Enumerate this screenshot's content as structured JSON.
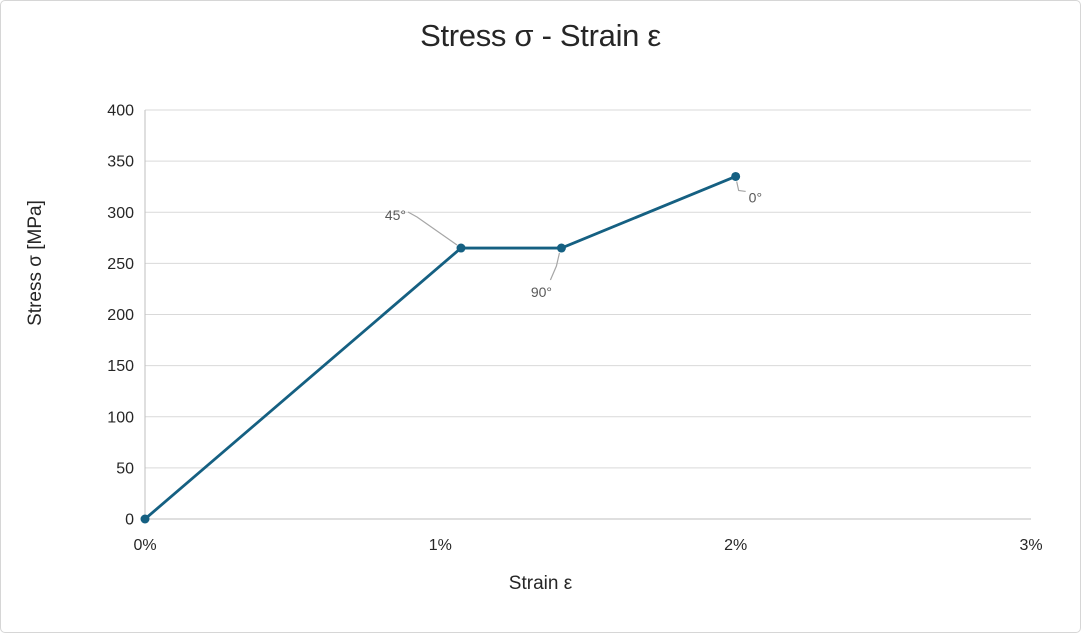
{
  "frame": {
    "background": "#ffffff",
    "border_color": "#d6d6d6"
  },
  "chart_data": {
    "type": "line",
    "title": "Stress σ - Strain ε",
    "xlabel": "Strain ε",
    "ylabel": "Stress σ [MPa]",
    "xlim": [
      0,
      3
    ],
    "ylim": [
      0,
      400
    ],
    "x_unit": "percent strain",
    "y_unit": "MPa",
    "grid": "horizontal-only",
    "legend": "none",
    "x_ticks": [
      {
        "value": 0,
        "label": "0%"
      },
      {
        "value": 1,
        "label": "1%"
      },
      {
        "value": 2,
        "label": "2%"
      },
      {
        "value": 3,
        "label": "3%"
      }
    ],
    "y_ticks": [
      {
        "value": 0,
        "label": "0"
      },
      {
        "value": 50,
        "label": "50"
      },
      {
        "value": 100,
        "label": "100"
      },
      {
        "value": 150,
        "label": "150"
      },
      {
        "value": 200,
        "label": "200"
      },
      {
        "value": 250,
        "label": "250"
      },
      {
        "value": 300,
        "label": "300"
      },
      {
        "value": 350,
        "label": "350"
      },
      {
        "value": 400,
        "label": "400"
      }
    ],
    "series": [
      {
        "name": "stress-strain-curve",
        "color": "#156082",
        "marker": "filled-circle",
        "points": [
          {
            "strain_pct": 0,
            "stress_mpa": 0
          },
          {
            "strain_pct": 1.07,
            "stress_mpa": 265
          },
          {
            "strain_pct": 1.41,
            "stress_mpa": 265
          },
          {
            "strain_pct": 2.0,
            "stress_mpa": 335
          }
        ]
      }
    ],
    "annotations": [
      {
        "label": "45°",
        "point_index": 1
      },
      {
        "label": "90°",
        "point_index": 2
      },
      {
        "label": "0°",
        "point_index": 3
      }
    ],
    "colors": {
      "line": "#156082",
      "marker": "#156082",
      "gridline": "#d9d9d9",
      "axis_line": "#bfbfbf",
      "leader_line": "#a6a6a6",
      "annotation_text": "#595959",
      "tick_text": "#262626",
      "title_text": "#262626"
    }
  }
}
